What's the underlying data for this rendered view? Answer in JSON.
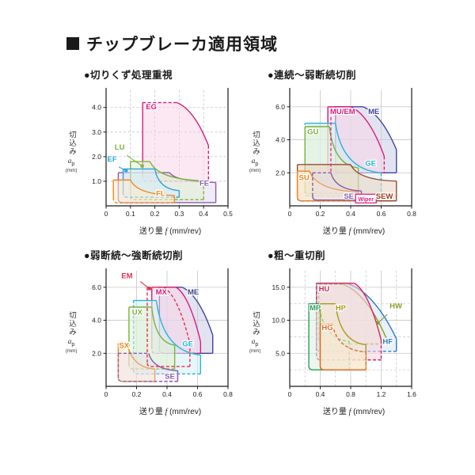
{
  "page": {
    "title_marker": "■",
    "title": "チップブレーカ適用領域"
  },
  "axis": {
    "xlabel_pre": "送り量 ",
    "xlabel_f": "f",
    "xlabel_post": " (mm/rev)",
    "ylabel_kanji": "切込み",
    "ylabel_symbol": "a",
    "ylabel_sub": "p",
    "ylabel_unit": "(mm)"
  },
  "chart_data": [
    {
      "id": "chip-control",
      "type": "area",
      "heading": "●切りくず処理重視",
      "xlabel": "送り量 f (mm/rev)",
      "ylabel": "切込み ap (mm)",
      "x_range": [
        0,
        0.5
      ],
      "y_range": [
        0,
        4.7
      ],
      "x_ticks": [
        0,
        0.1,
        0.2,
        0.3,
        0.4,
        0.5
      ],
      "x_tick_labels": [
        "0",
        "0.1",
        "0.2",
        "0.3",
        "0.4",
        "0.5"
      ],
      "y_ticks": [
        1,
        2,
        3,
        4
      ],
      "y_tick_labels": [
        "1.0",
        "2.0",
        "3.0",
        "4.0"
      ],
      "grid": "dashed",
      "regions": [
        {
          "name": "EG",
          "color": "#d81b7a",
          "fill": "#f8d6e8",
          "x0": 0.15,
          "knee": 0.29,
          "x1": 0.42,
          "yTop": 4.2,
          "yMid": 2.45,
          "yBot": 1.0,
          "curve": "shoulder",
          "dash": [
            0,
            1,
            0,
            1,
            1
          ]
        },
        {
          "name": "FE",
          "color": "#8a5ca8",
          "fill": "#e4dbee",
          "x0": 0.05,
          "knee": 0.26,
          "x1": 0.45,
          "yTop": 1.35,
          "yMid": 0.95,
          "yBot": 0.13,
          "curve": "decay",
          "dash": [
            0,
            0,
            0,
            0,
            0
          ]
        },
        {
          "name": "LU",
          "color": "#7cb23e",
          "fill": "#e4f0d2",
          "x0": 0.1,
          "knee": 0.18,
          "x1": 0.4,
          "yTop": 1.8,
          "yMid": 1.02,
          "yBot": 0.25,
          "curve": "decay",
          "dash": [
            0,
            0,
            0,
            1,
            1
          ]
        },
        {
          "name": "EF",
          "color": "#2aa4dd",
          "fill": "#d4ebf8",
          "x0": 0.07,
          "knee": 0.2,
          "x1": 0.3,
          "yTop": 1.5,
          "yMid": 0.62,
          "yBot": 0.35,
          "curve": "decay",
          "dash": [
            0,
            0,
            0,
            0,
            1
          ]
        },
        {
          "name": "FL",
          "color": "#f0861e",
          "fill": "#fdeccd",
          "x0": 0.03,
          "knee": 0.1,
          "x1": 0.28,
          "yTop": 1.05,
          "yMid": 0.42,
          "yBot": 0.12,
          "curve": "decay",
          "dash": [
            0,
            0,
            0,
            0,
            1
          ]
        }
      ],
      "labels": [
        {
          "text": "EG",
          "x": 0.163,
          "y": 3.92,
          "color": "#d81b7a"
        },
        {
          "text": "LU",
          "x": 0.035,
          "y": 2.28,
          "color": "#7cb23e",
          "leader": [
            0.085,
            2.05,
            0.148,
            1.62
          ],
          "dot": true
        },
        {
          "text": "EF",
          "x": 0.005,
          "y": 1.8,
          "color": "#2aa4dd",
          "leader": [
            0.052,
            1.58,
            0.082,
            1.44
          ],
          "dot": true
        },
        {
          "text": "FL",
          "x": 0.205,
          "y": 0.4,
          "color": "#f0861e"
        },
        {
          "text": "FE",
          "x": 0.383,
          "y": 0.82,
          "color": "#8a5ca8"
        }
      ]
    },
    {
      "id": "continuous-light-interrupted",
      "type": "area",
      "heading": "●連続〜弱断続切削",
      "xlabel": "送り量 f (mm/rev)",
      "ylabel": "切込み ap (mm)",
      "x_range": [
        0,
        0.8
      ],
      "y_range": [
        0,
        7.0
      ],
      "x_ticks": [
        0,
        0.2,
        0.4,
        0.6,
        0.8
      ],
      "x_tick_labels": [
        "0",
        "0.2",
        "0.4",
        "0.6",
        "0.8"
      ],
      "y_ticks": [
        2,
        4,
        6
      ],
      "y_tick_labels": [
        "2.0",
        "4.0",
        "6.0"
      ],
      "grid": "solid",
      "regions": [
        {
          "name": "ME",
          "color": "#40439a",
          "fill": "#cbcce6",
          "x0": 0.3,
          "knee": 0.48,
          "x1": 0.7,
          "yTop": 6.0,
          "yMid": 3.4,
          "yBot": 2.0,
          "curve": "shoulder",
          "dash": [
            0,
            0,
            0,
            0,
            0
          ]
        },
        {
          "name": "MU/EM",
          "color": "#d81b7a",
          "fill": "#f8d6e8",
          "x0": 0.25,
          "knee": 0.4,
          "x1": 0.62,
          "yTop": 6.0,
          "yMid": 3.0,
          "yBot": 2.0,
          "curve": "shoulder",
          "dash": [
            0,
            0,
            0,
            1,
            1
          ]
        },
        {
          "name": "GE",
          "color": "#29b5d8",
          "fill": "#d2eef8",
          "x0": 0.1,
          "knee": 0.3,
          "x1": 0.6,
          "yTop": 5.0,
          "yMid": 2.0,
          "yBot": 0.6,
          "curve": "decay",
          "dash": [
            1,
            0,
            0,
            1,
            1
          ]
        },
        {
          "name": "GU",
          "color": "#7cb23e",
          "fill": "#e4f0d2",
          "x0": 0.1,
          "knee": 0.26,
          "x1": 0.45,
          "yTop": 4.8,
          "yMid": 2.3,
          "yBot": 0.75,
          "curve": "decay",
          "dash": [
            0,
            0,
            0,
            0,
            1
          ]
        },
        {
          "name": "SEW",
          "color": "#9c4a32",
          "fill": "#e9d6c6",
          "fillOp": 0.6,
          "x0": 0.05,
          "knee": 0.4,
          "x1": 0.7,
          "yTop": 2.5,
          "yMid": 1.5,
          "yBot": 0.3,
          "curve": "decay",
          "dash": [
            0,
            0,
            0,
            0,
            0
          ]
        },
        {
          "name": "SU",
          "color": "#f0861e",
          "fill": "#fdeccd",
          "x0": 0.05,
          "knee": 0.13,
          "x1": 0.45,
          "yTop": 2.1,
          "yMid": 0.85,
          "yBot": 0.3,
          "curve": "decay",
          "dash": [
            0,
            0,
            0,
            0,
            1
          ]
        },
        {
          "name": "SE",
          "color": "#8a5ca8",
          "fill": "#e4dbee",
          "fillOp": 0.35,
          "x0": 0.15,
          "knee": 0.27,
          "x1": 0.47,
          "yTop": 2.0,
          "yMid": 0.9,
          "yBot": 0.35,
          "curve": "decay",
          "dash": [
            1,
            1,
            0,
            0,
            0
          ]
        }
      ],
      "lines": [
        {
          "x1": 0.27,
          "y1": 6.0,
          "x2": 0.27,
          "y2": 2.0,
          "color": "#d81b7a",
          "dash": true
        }
      ],
      "labels": [
        {
          "text": "GU",
          "x": 0.115,
          "y": 4.35,
          "color": "#7cb23e"
        },
        {
          "text": "MU/EM",
          "x": 0.265,
          "y": 5.55,
          "color": "#d81b7a"
        },
        {
          "text": "ME",
          "x": 0.515,
          "y": 5.55,
          "color": "#40439a"
        },
        {
          "text": "GE",
          "x": 0.495,
          "y": 2.42,
          "color": "#29b5d8"
        },
        {
          "text": "SU",
          "x": 0.06,
          "y": 1.55,
          "color": "#f0861e"
        },
        {
          "text": "SE",
          "x": 0.355,
          "y": 0.44,
          "color": "#8a5ca8"
        },
        {
          "text": "SEW",
          "x": 0.565,
          "y": 0.44,
          "color": "#9c3a22"
        }
      ],
      "badges": [
        {
          "cx": 0.5,
          "cy": 0.44,
          "text": "Wiper",
          "color": "#d81b7a"
        }
      ]
    },
    {
      "id": "light-heavy-interrupted",
      "type": "area",
      "heading": "●弱断続〜強断続切削",
      "xlabel": "送り量 f (mm/rev)",
      "ylabel": "切込み ap (mm)",
      "x_range": [
        0,
        0.8
      ],
      "y_range": [
        0,
        7.0
      ],
      "x_ticks": [
        0,
        0.2,
        0.4,
        0.6,
        0.8
      ],
      "x_tick_labels": [
        "0",
        "0.2",
        "0.4",
        "0.6",
        "0.8"
      ],
      "y_ticks": [
        2,
        4,
        6
      ],
      "y_tick_labels": [
        "2.0",
        "4.0",
        "6.0"
      ],
      "grid": "solid",
      "regions": [
        {
          "name": "ME",
          "color": "#40439a",
          "fill": "#cbcce6",
          "x0": 0.35,
          "knee": 0.5,
          "x1": 0.7,
          "yTop": 6.0,
          "yMid": 3.1,
          "yBot": 2.0,
          "curve": "shoulder",
          "dash": [
            0,
            0,
            0,
            0,
            0
          ]
        },
        {
          "name": "MX",
          "color": "#d81b7a",
          "fill": "#f8d6e8",
          "x0": 0.3,
          "knee": 0.46,
          "x1": 0.62,
          "yTop": 6.0,
          "yMid": 2.7,
          "yBot": 2.0,
          "curve": "shoulder",
          "dash": [
            0,
            0,
            0,
            0,
            1
          ]
        },
        {
          "name": "GE",
          "color": "#29b5d8",
          "fill": "#d2eef8",
          "x0": 0.18,
          "knee": 0.33,
          "x1": 0.62,
          "yTop": 5.2,
          "yMid": 1.9,
          "yBot": 0.75,
          "curve": "decay",
          "dash": [
            1,
            0,
            0,
            0,
            1
          ]
        },
        {
          "name": "UX",
          "color": "#7cb23e",
          "fill": "#e4f0d2",
          "x0": 0.15,
          "knee": 0.3,
          "x1": 0.45,
          "yTop": 4.8,
          "yMid": 2.5,
          "yBot": 1.05,
          "curve": "decay",
          "dash": [
            0,
            0,
            0,
            0,
            1
          ]
        },
        {
          "name": "SX",
          "color": "#f0861e",
          "fill": "#fdeccd",
          "x0": 0.08,
          "knee": 0.14,
          "x1": 0.32,
          "yTop": 2.6,
          "yMid": 1.05,
          "yBot": 0.3,
          "curve": "decay",
          "dash": [
            0,
            0,
            0,
            0,
            1
          ]
        },
        {
          "name": "SE",
          "color": "#8a5ca8",
          "fill": "#e4dbee",
          "fillOp": 0.35,
          "x0": 0.08,
          "knee": 0.28,
          "x1": 0.47,
          "yTop": 2.0,
          "yMid": 0.95,
          "yBot": 0.3,
          "curve": "decay",
          "dash": [
            1,
            1,
            0,
            0,
            1
          ]
        },
        {
          "name": "EM",
          "color": "#e8304a",
          "fill": "none",
          "x0": 0.27,
          "knee": 0.38,
          "x1": 0.55,
          "yTop": 6.0,
          "yMid": 2.6,
          "yBot": 1.2,
          "curve": "shoulder",
          "dash": [
            1,
            1,
            1,
            1,
            1
          ]
        }
      ],
      "labels": [
        {
          "text": "EM",
          "x": 0.1,
          "y": 6.55,
          "color": "#e8304a",
          "leader": [
            0.225,
            6.35,
            0.285,
            5.92
          ],
          "dot": true
        },
        {
          "text": "MX",
          "x": 0.325,
          "y": 5.55,
          "color": "#d81b7a"
        },
        {
          "text": "ME",
          "x": 0.535,
          "y": 5.55,
          "color": "#40439a"
        },
        {
          "text": "UX",
          "x": 0.17,
          "y": 4.35,
          "color": "#7cb23e"
        },
        {
          "text": "SX",
          "x": 0.085,
          "y": 2.32,
          "color": "#f0861e"
        },
        {
          "text": "GE",
          "x": 0.5,
          "y": 2.42,
          "color": "#29b5d8"
        },
        {
          "text": "SE",
          "x": 0.385,
          "y": 0.46,
          "color": "#8a5ca8"
        }
      ]
    },
    {
      "id": "rough-heavy-cutting",
      "type": "area",
      "heading": "●粗〜重切削",
      "xlabel": "送り量 f (mm/rev)",
      "ylabel": "切込み ap (mm)",
      "x_range": [
        0,
        1.6
      ],
      "y_range": [
        0,
        17.5
      ],
      "x_ticks": [
        0,
        0.4,
        0.8,
        1.2,
        1.6
      ],
      "x_tick_labels": [
        "0",
        "0.4",
        "0.8",
        "1.2",
        "1.6"
      ],
      "y_ticks": [
        5,
        10,
        15
      ],
      "y_tick_labels": [
        "5.0",
        "10.0",
        "15.0"
      ],
      "x_minor": [
        0.2,
        0.6,
        1.0,
        1.4
      ],
      "y_minor": [
        2.5,
        7.5,
        12.5
      ],
      "grid": "solid",
      "regions": [
        {
          "name": "HF",
          "color": "#2e79c0",
          "fill": "#d6e6f6",
          "x0": 0.35,
          "knee": 0.75,
          "x1": 1.4,
          "yTop": 15.6,
          "yMid": 7.2,
          "yBot": 5.3,
          "curve": "shoulder",
          "dash": [
            1,
            0,
            0,
            0,
            1
          ]
        },
        {
          "name": "HW",
          "color": "#8a9b2a",
          "fill": "#eaf0d0",
          "x0": 0.38,
          "knee": 0.7,
          "x1": 1.3,
          "yTop": 15.45,
          "yMid": 6.4,
          "yBot": 6.4,
          "curve": "shoulder",
          "dash": [
            1,
            1,
            0,
            1,
            1
          ]
        },
        {
          "name": "HU",
          "color": "#d2255b",
          "fill": "#f8d4de",
          "x0": 0.35,
          "knee": 0.85,
          "x1": 1.2,
          "yTop": 15.6,
          "yMid": 7.0,
          "yBot": 4.0,
          "curve": "shoulder",
          "dash": [
            1,
            0,
            0,
            1,
            1
          ]
        },
        {
          "name": "MP",
          "color": "#2ba05a",
          "fill": "#d9efe2",
          "x0": 0.25,
          "knee": 0.38,
          "x1": 0.78,
          "yTop": 12.5,
          "yMid": 6.8,
          "yBot": 2.5,
          "curve": "decay",
          "dash": [
            0,
            0,
            1,
            1,
            0
          ]
        },
        {
          "name": "HP",
          "color": "#a89a1e",
          "fill": "#f0ebcf",
          "x0": 0.4,
          "knee": 0.6,
          "x1": 1.0,
          "yTop": 12.5,
          "yMid": 6.3,
          "yBot": 2.5,
          "curve": "decay",
          "dash": [
            0,
            0,
            0,
            0,
            0
          ]
        },
        {
          "name": "HG",
          "color": "#e06a28",
          "fill": "#fbe5cf",
          "x0": 0.4,
          "knee": 0.56,
          "x1": 1.0,
          "yTop": 9.4,
          "yMid": 5.2,
          "yBot": 2.5,
          "curve": "decay",
          "dash": [
            0,
            0,
            1,
            1,
            0
          ]
        }
      ],
      "labels": [
        {
          "text": "HU",
          "x": 0.38,
          "y": 14.4,
          "color": "#d2255b"
        },
        {
          "text": "MP",
          "x": 0.26,
          "y": 11.5,
          "color": "#2ba05a"
        },
        {
          "text": "HP",
          "x": 0.6,
          "y": 11.5,
          "color": "#a89a1e"
        },
        {
          "text": "HG",
          "x": 0.42,
          "y": 8.5,
          "color": "#e06a28"
        },
        {
          "text": "HW",
          "x": 1.31,
          "y": 11.8,
          "color": "#8a9b2a",
          "leader": [
            1.28,
            10.9,
            1.16,
            9.6
          ],
          "dot": true
        },
        {
          "text": "HF",
          "x": 1.22,
          "y": 6.4,
          "color": "#2e79c0"
        }
      ]
    }
  ]
}
